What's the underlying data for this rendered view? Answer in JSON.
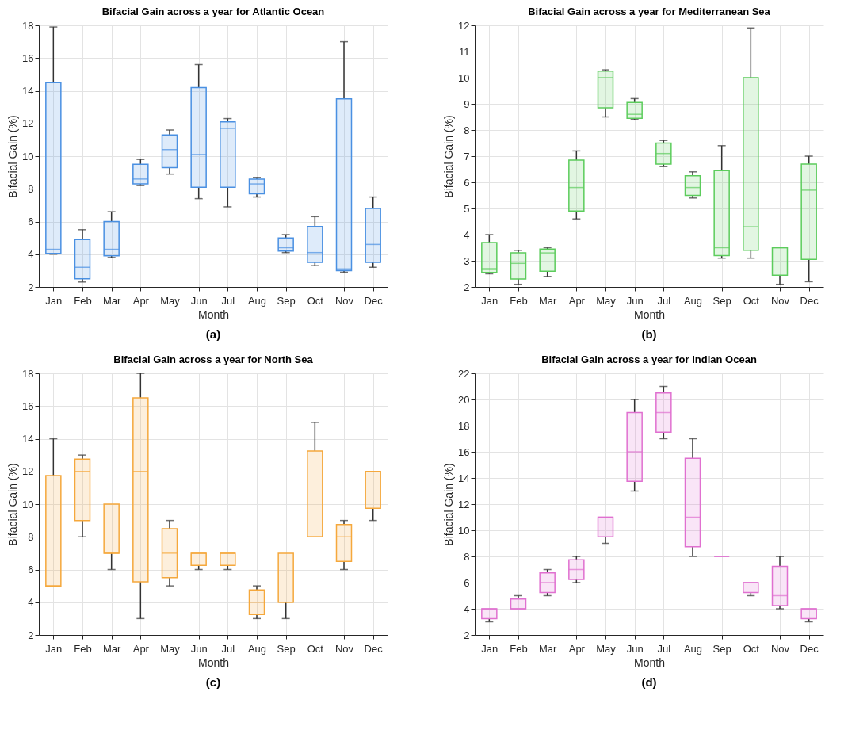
{
  "chart_data": [
    {
      "type": "box",
      "title": "Bifacial Gain across a year for Atlantic Ocean",
      "xlabel": "Month",
      "ylabel": "Bifacial Gain (%)",
      "categories": [
        "Jan",
        "Feb",
        "Mar",
        "Apr",
        "May",
        "Jun",
        "Jul",
        "Aug",
        "Sep",
        "Oct",
        "Nov",
        "Dec"
      ],
      "ylim": [
        2,
        18
      ],
      "yticks": [
        2,
        4,
        6,
        8,
        10,
        12,
        14,
        16,
        18
      ],
      "grid": true,
      "annotations": [
        "(a)"
      ],
      "series": [
        {
          "color": "#4a90e2",
          "boxes": [
            {
              "low": 4.0,
              "q1": 4.05,
              "median": 4.3,
              "q3": 14.5,
              "high": 17.9
            },
            {
              "low": 2.3,
              "q1": 2.5,
              "median": 3.2,
              "q3": 4.9,
              "high": 5.5
            },
            {
              "low": 3.8,
              "q1": 3.9,
              "median": 4.3,
              "q3": 6.0,
              "high": 6.6
            },
            {
              "low": 8.2,
              "q1": 8.3,
              "median": 8.6,
              "q3": 9.5,
              "high": 9.8
            },
            {
              "low": 8.9,
              "q1": 9.3,
              "median": 10.4,
              "q3": 11.3,
              "high": 11.6
            },
            {
              "low": 7.4,
              "q1": 8.1,
              "median": 10.1,
              "q3": 14.2,
              "high": 15.6
            },
            {
              "low": 6.9,
              "q1": 8.1,
              "median": 11.7,
              "q3": 12.1,
              "high": 12.3
            },
            {
              "low": 7.5,
              "q1": 7.7,
              "median": 8.3,
              "q3": 8.6,
              "high": 8.7
            },
            {
              "low": 4.1,
              "q1": 4.2,
              "median": 4.4,
              "q3": 5.0,
              "high": 5.2
            },
            {
              "low": 3.3,
              "q1": 3.5,
              "median": 4.1,
              "q3": 5.7,
              "high": 6.3
            },
            {
              "low": 2.9,
              "q1": 3.0,
              "median": 3.1,
              "q3": 13.5,
              "high": 17.0
            },
            {
              "low": 3.2,
              "q1": 3.5,
              "median": 4.6,
              "q3": 6.8,
              "high": 7.5
            }
          ]
        }
      ]
    },
    {
      "type": "box",
      "title": "Bifacial Gain across a year for Mediterranean Sea",
      "xlabel": "Month",
      "ylabel": "Bifacial Gain (%)",
      "categories": [
        "Jan",
        "Feb",
        "Mar",
        "Apr",
        "May",
        "Jun",
        "Jul",
        "Aug",
        "Sep",
        "Oct",
        "Nov",
        "Dec"
      ],
      "ylim": [
        2,
        12
      ],
      "yticks": [
        2,
        3,
        4,
        5,
        6,
        7,
        8,
        9,
        10,
        11,
        12
      ],
      "grid": true,
      "annotations": [
        "(b)"
      ],
      "series": [
        {
          "color": "#5ccc5c",
          "boxes": [
            {
              "low": 2.5,
              "q1": 2.55,
              "median": 2.7,
              "q3": 3.7,
              "high": 4.0
            },
            {
              "low": 2.1,
              "q1": 2.3,
              "median": 2.9,
              "q3": 3.3,
              "high": 3.4
            },
            {
              "low": 2.4,
              "q1": 2.6,
              "median": 3.3,
              "q3": 3.45,
              "high": 3.5
            },
            {
              "low": 4.6,
              "q1": 4.9,
              "median": 5.8,
              "q3": 6.85,
              "high": 7.2
            },
            {
              "low": 8.5,
              "q1": 8.85,
              "median": 10.0,
              "q3": 10.25,
              "high": 10.3
            },
            {
              "low": 8.4,
              "q1": 8.45,
              "median": 8.6,
              "q3": 9.05,
              "high": 9.2
            },
            {
              "low": 6.6,
              "q1": 6.7,
              "median": 7.1,
              "q3": 7.5,
              "high": 7.6
            },
            {
              "low": 5.4,
              "q1": 5.5,
              "median": 5.8,
              "q3": 6.25,
              "high": 6.4
            },
            {
              "low": 3.1,
              "q1": 3.2,
              "median": 3.5,
              "q3": 6.45,
              "high": 7.4
            },
            {
              "low": 3.1,
              "q1": 3.4,
              "median": 4.3,
              "q3": 10.0,
              "high": 11.9
            },
            {
              "low": 2.1,
              "q1": 2.45,
              "median": 3.5,
              "q3": 3.5,
              "high": 3.5
            },
            {
              "low": 2.2,
              "q1": 3.05,
              "median": 5.7,
              "q3": 6.7,
              "high": 7.0
            }
          ]
        }
      ]
    },
    {
      "type": "box",
      "title": "Bifacial Gain across a year for North Sea",
      "xlabel": "Month",
      "ylabel": "Bifacial Gain (%)",
      "categories": [
        "Jan",
        "Feb",
        "Mar",
        "Apr",
        "May",
        "Jun",
        "Jul",
        "Aug",
        "Sep",
        "Oct",
        "Nov",
        "Dec"
      ],
      "ylim": [
        2,
        18
      ],
      "yticks": [
        2,
        4,
        6,
        8,
        10,
        12,
        14,
        16,
        18
      ],
      "grid": true,
      "annotations": [
        "(c)"
      ],
      "series": [
        {
          "color": "#f5a83c",
          "boxes": [
            {
              "low": 5,
              "q1": 5,
              "median": 5,
              "q3": 11.75,
              "high": 14
            },
            {
              "low": 8,
              "q1": 9,
              "median": 12,
              "q3": 12.75,
              "high": 13
            },
            {
              "low": 6,
              "q1": 7,
              "median": 7,
              "q3": 10,
              "high": 10
            },
            {
              "low": 3,
              "q1": 5.25,
              "median": 12,
              "q3": 16.5,
              "high": 18
            },
            {
              "low": 5,
              "q1": 5.5,
              "median": 7,
              "q3": 8.5,
              "high": 9
            },
            {
              "low": 6,
              "q1": 6.25,
              "median": 7,
              "q3": 7,
              "high": 7
            },
            {
              "low": 6,
              "q1": 6.25,
              "median": 7,
              "q3": 7,
              "high": 7
            },
            {
              "low": 3,
              "q1": 3.25,
              "median": 4,
              "q3": 4.75,
              "high": 5
            },
            {
              "low": 3,
              "q1": 4,
              "median": 4,
              "q3": 7,
              "high": 7
            },
            {
              "low": 8,
              "q1": 8,
              "median": 8,
              "q3": 13.25,
              "high": 15
            },
            {
              "low": 6,
              "q1": 6.5,
              "median": 8,
              "q3": 8.75,
              "high": 9
            },
            {
              "low": 9,
              "q1": 9.75,
              "median": 12,
              "q3": 12,
              "high": 12
            }
          ]
        }
      ]
    },
    {
      "type": "box",
      "title": "Bifacial Gain across a year for Indian Ocean",
      "xlabel": "Month",
      "ylabel": "Bifacial Gain (%)",
      "categories": [
        "Jan",
        "Feb",
        "Mar",
        "Apr",
        "May",
        "Jun",
        "Jul",
        "Aug",
        "Sep",
        "Oct",
        "Nov",
        "Dec"
      ],
      "ylim": [
        2,
        22
      ],
      "yticks": [
        2,
        4,
        6,
        8,
        10,
        12,
        14,
        16,
        18,
        20,
        22
      ],
      "grid": true,
      "annotations": [
        "(d)"
      ],
      "series": [
        {
          "color": "#e070d0",
          "boxes": [
            {
              "low": 3,
              "q1": 3.25,
              "median": 4,
              "q3": 4,
              "high": 4
            },
            {
              "low": 4,
              "q1": 4,
              "median": 4,
              "q3": 4.75,
              "high": 5
            },
            {
              "low": 5,
              "q1": 5.25,
              "median": 6,
              "q3": 6.75,
              "high": 7
            },
            {
              "low": 6,
              "q1": 6.25,
              "median": 7,
              "q3": 7.75,
              "high": 8
            },
            {
              "low": 9,
              "q1": 9.5,
              "median": 11,
              "q3": 11,
              "high": 11
            },
            {
              "low": 13,
              "q1": 13.75,
              "median": 16,
              "q3": 19,
              "high": 20
            },
            {
              "low": 17,
              "q1": 17.5,
              "median": 19,
              "q3": 20.5,
              "high": 21
            },
            {
              "low": 8,
              "q1": 8.75,
              "median": 11,
              "q3": 15.5,
              "high": 17
            },
            {
              "low": 8,
              "q1": 8,
              "median": 8,
              "q3": 8,
              "high": 8
            },
            {
              "low": 5,
              "q1": 5.25,
              "median": 6,
              "q3": 6,
              "high": 6
            },
            {
              "low": 4,
              "q1": 4.25,
              "median": 5,
              "q3": 7.25,
              "high": 8
            },
            {
              "low": 3,
              "q1": 3.25,
              "median": 4,
              "q3": 4,
              "high": 4
            }
          ]
        }
      ]
    }
  ]
}
